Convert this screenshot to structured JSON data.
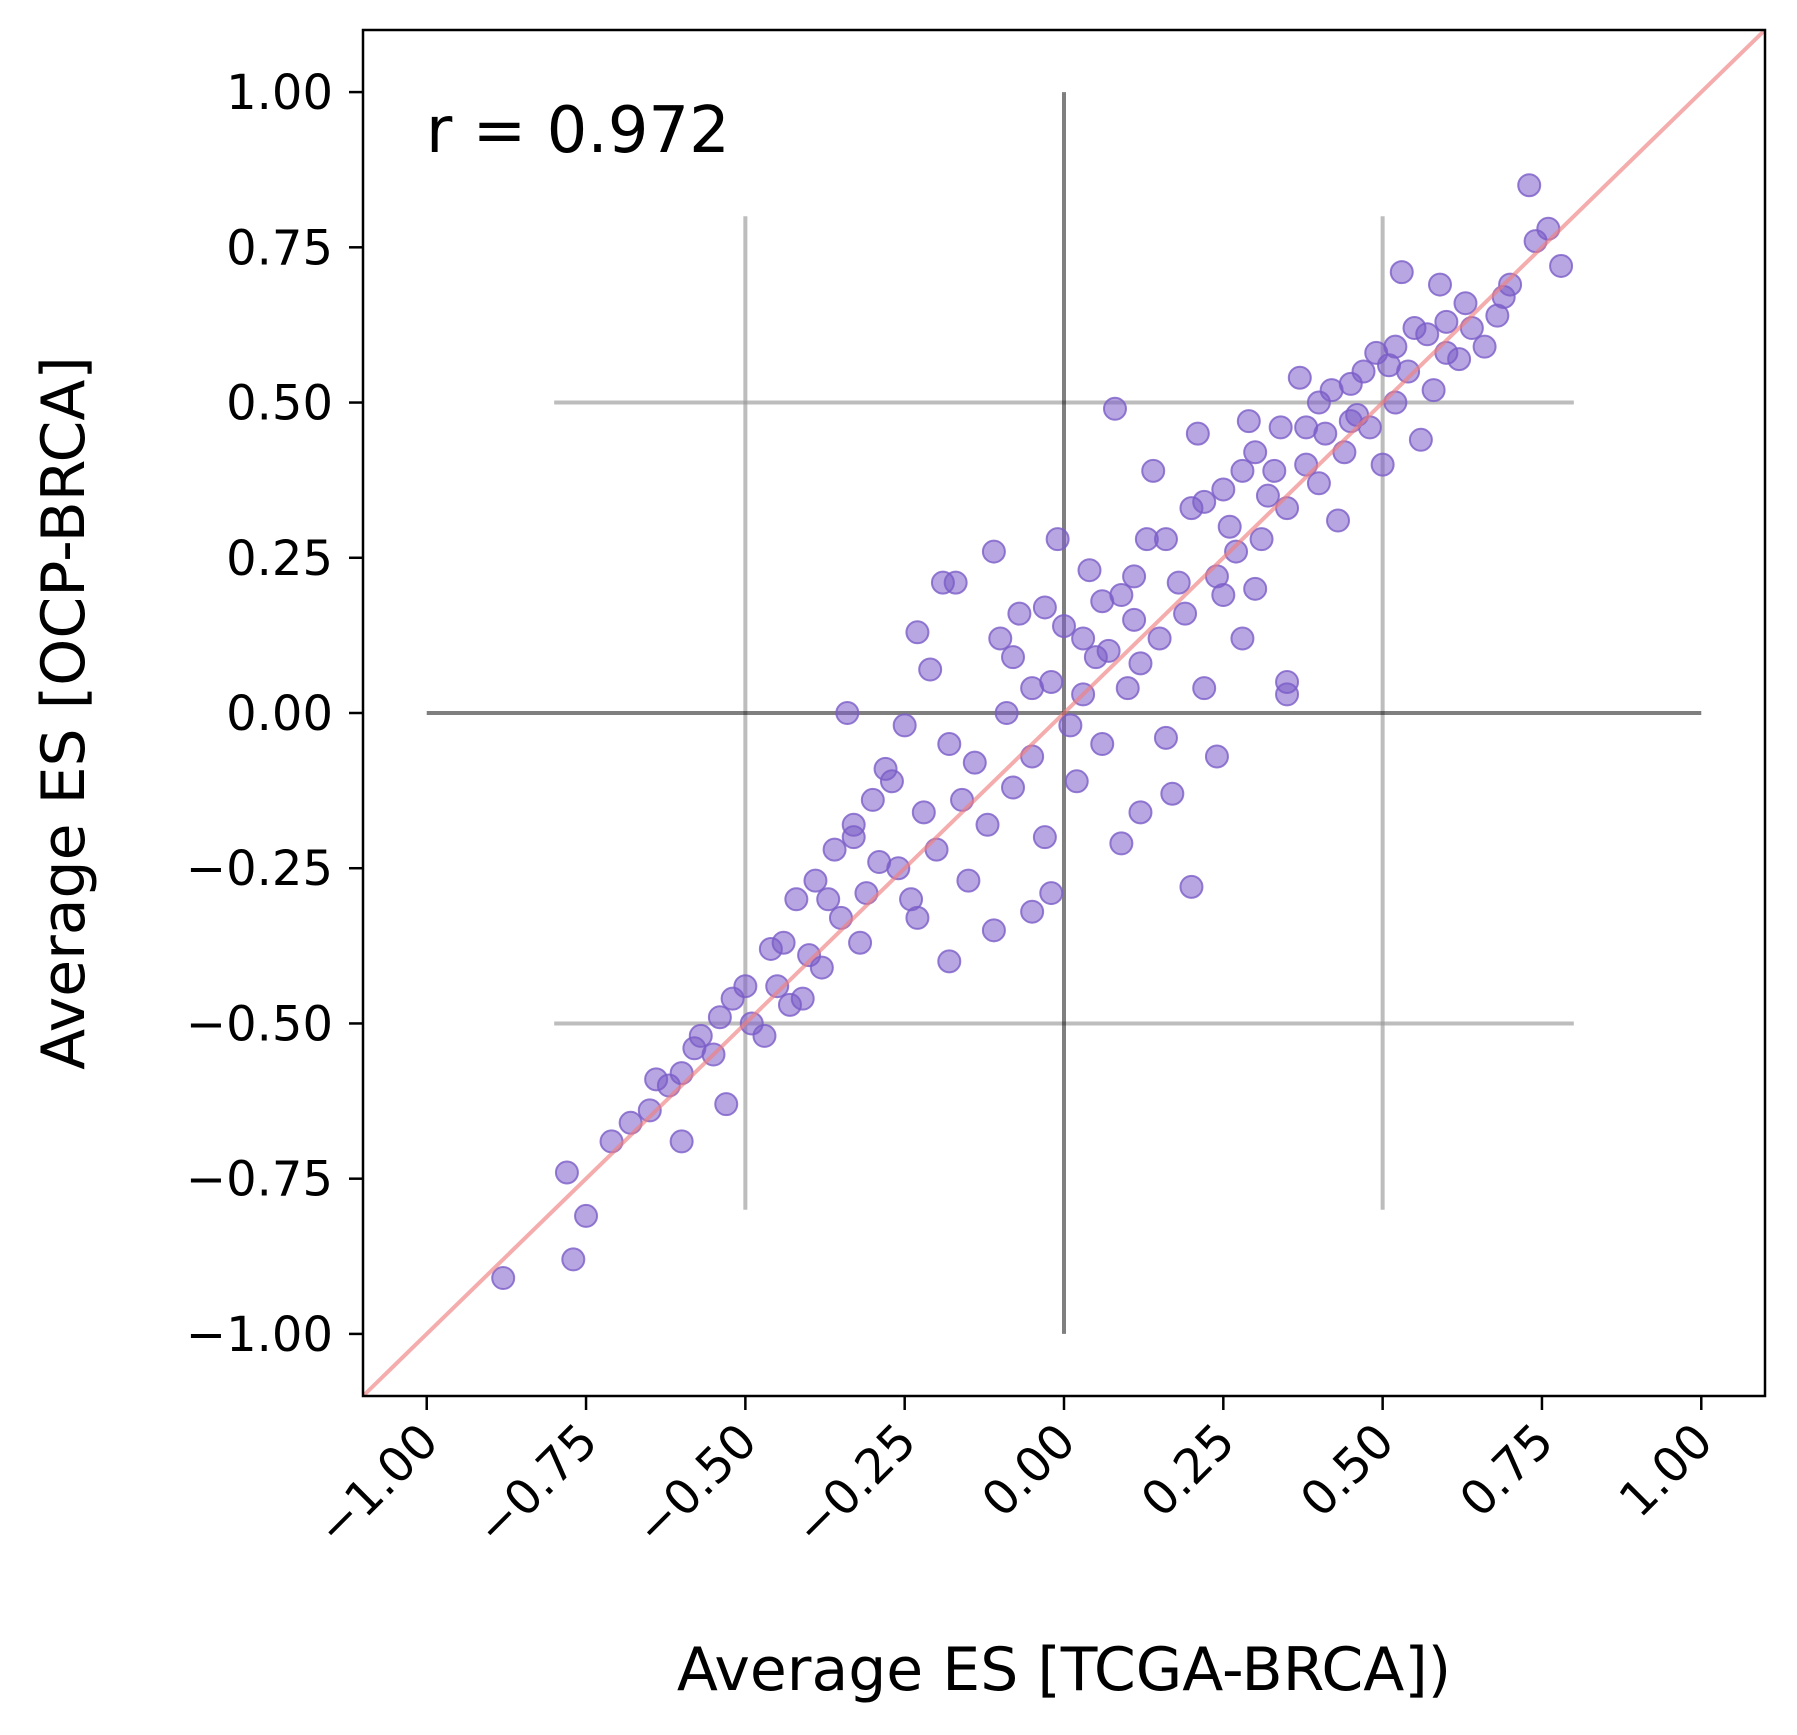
{
  "chart_data": {
    "type": "scatter",
    "xlabel": "Average ES [TCGA-BRCA])",
    "ylabel": "Average ES [OCP-BRCA]",
    "annotation": "r = 0.972",
    "xlim": [
      -1.1,
      1.1
    ],
    "ylim": [
      -1.1,
      1.1
    ],
    "xticks": [
      -1.0,
      -0.75,
      -0.5,
      -0.25,
      0.0,
      0.25,
      0.5,
      0.75,
      1.0
    ],
    "yticks": [
      -1.0,
      -0.75,
      -0.5,
      -0.25,
      0.0,
      0.25,
      0.5,
      0.75,
      1.0
    ],
    "xtick_labels": [
      "−1.00",
      "−0.75",
      "−0.50",
      "−0.25",
      "0.00",
      "0.25",
      "0.50",
      "0.75",
      "1.00"
    ],
    "ytick_labels": [
      "−1.00",
      "−0.75",
      "−0.50",
      "−0.25",
      "0.00",
      "0.25",
      "0.50",
      "0.75",
      "1.00"
    ],
    "xtick_rotation_deg": 45,
    "grid": false,
    "colors": {
      "points": "#7b5cc8",
      "identity_line": "#f08080",
      "zero_lines": "#000000",
      "reference_lines": "#999999"
    },
    "identity_line": true,
    "zero_lines": {
      "horizontal": {
        "y": 0.0,
        "x_range": [
          -1.0,
          1.0
        ]
      },
      "vertical": {
        "x": 0.0,
        "y_range": [
          -1.0,
          1.0
        ]
      }
    },
    "reference_lines": {
      "horizontal": [
        {
          "y": 0.5,
          "x_range": [
            -0.8,
            0.8
          ]
        },
        {
          "y": -0.5,
          "x_range": [
            -0.8,
            0.8
          ]
        }
      ],
      "vertical": [
        {
          "x": -0.5,
          "y_range": [
            -0.8,
            0.8
          ]
        },
        {
          "x": 0.5,
          "y_range": [
            -0.8,
            0.8
          ]
        }
      ]
    },
    "series": [
      {
        "points": [
          [
            0.73,
            0.85
          ],
          [
            0.78,
            0.72
          ],
          [
            0.76,
            0.78
          ],
          [
            0.74,
            0.76
          ],
          [
            0.7,
            0.69
          ],
          [
            0.68,
            0.64
          ],
          [
            0.63,
            0.66
          ],
          [
            0.6,
            0.63
          ],
          [
            0.59,
            0.69
          ],
          [
            0.53,
            0.71
          ],
          [
            0.55,
            0.62
          ],
          [
            0.52,
            0.59
          ],
          [
            0.49,
            0.58
          ],
          [
            0.47,
            0.55
          ],
          [
            0.45,
            0.53
          ],
          [
            0.42,
            0.52
          ],
          [
            0.4,
            0.5
          ],
          [
            0.38,
            0.46
          ],
          [
            0.34,
            0.46
          ],
          [
            0.3,
            0.42
          ],
          [
            0.28,
            0.39
          ],
          [
            0.25,
            0.36
          ],
          [
            0.22,
            0.34
          ],
          [
            0.2,
            0.33
          ],
          [
            0.16,
            0.28
          ],
          [
            0.13,
            0.28
          ],
          [
            0.11,
            0.22
          ],
          [
            0.09,
            0.19
          ],
          [
            0.06,
            0.18
          ],
          [
            0.03,
            0.12
          ],
          [
            -0.01,
            0.28
          ],
          [
            -0.03,
            0.17
          ],
          [
            -0.05,
            0.04
          ],
          [
            -0.08,
            0.09
          ],
          [
            -0.1,
            0.12
          ],
          [
            -0.11,
            0.26
          ],
          [
            -0.17,
            0.21
          ],
          [
            -0.19,
            0.21
          ],
          [
            -0.23,
            0.13
          ],
          [
            -0.21,
            0.07
          ],
          [
            -0.25,
            -0.02
          ],
          [
            -0.28,
            -0.09
          ],
          [
            -0.3,
            -0.14
          ],
          [
            -0.33,
            -0.18
          ],
          [
            -0.36,
            -0.22
          ],
          [
            -0.39,
            -0.27
          ],
          [
            -0.42,
            -0.3
          ],
          [
            -0.46,
            -0.38
          ],
          [
            -0.5,
            -0.44
          ],
          [
            -0.54,
            -0.49
          ],
          [
            -0.57,
            -0.52
          ],
          [
            -0.6,
            -0.58
          ],
          [
            -0.64,
            -0.59
          ],
          [
            -0.68,
            -0.66
          ],
          [
            -0.71,
            -0.69
          ],
          [
            -0.78,
            -0.74
          ],
          [
            -0.75,
            -0.81
          ],
          [
            -0.77,
            -0.88
          ],
          [
            -0.88,
            -0.91
          ],
          [
            -0.34,
            0.0
          ],
          [
            0.2,
            -0.28
          ],
          [
            0.35,
            0.03
          ],
          [
            0.35,
            0.05
          ],
          [
            0.08,
            0.49
          ],
          [
            0.28,
            0.12
          ],
          [
            0.17,
            -0.13
          ],
          [
            0.12,
            -0.16
          ],
          [
            0.09,
            -0.21
          ],
          [
            -0.02,
            -0.29
          ],
          [
            -0.05,
            -0.32
          ],
          [
            -0.11,
            -0.35
          ],
          [
            -0.18,
            -0.4
          ],
          [
            -0.23,
            -0.33
          ],
          [
            0.24,
            -0.07
          ],
          [
            0.25,
            0.19
          ],
          [
            0.43,
            0.31
          ],
          [
            0.5,
            0.4
          ],
          [
            0.56,
            0.44
          ],
          [
            0.62,
            0.57
          ],
          [
            -0.6,
            -0.69
          ],
          [
            -0.65,
            -0.64
          ],
          [
            -0.53,
            -0.63
          ],
          [
            -0.43,
            -0.47
          ],
          [
            -0.38,
            -0.41
          ],
          [
            0.14,
            0.39
          ],
          [
            0.21,
            0.45
          ],
          [
            0.29,
            0.47
          ],
          [
            0.37,
            0.54
          ],
          [
            0.45,
            0.47
          ],
          [
            0.58,
            0.52
          ],
          [
            0.66,
            0.59
          ],
          [
            -0.14,
            -0.08
          ],
          [
            -0.08,
            -0.12
          ],
          [
            0.03,
            0.03
          ],
          [
            0.06,
            -0.05
          ],
          [
            -0.02,
            0.05
          ],
          [
            0.01,
            -0.02
          ],
          [
            0.1,
            0.04
          ],
          [
            0.15,
            0.12
          ],
          [
            0.19,
            0.16
          ],
          [
            0.24,
            0.22
          ],
          [
            0.31,
            0.28
          ],
          [
            0.35,
            0.33
          ],
          [
            0.4,
            0.37
          ],
          [
            0.44,
            0.42
          ],
          [
            0.48,
            0.46
          ],
          [
            0.52,
            0.5
          ],
          [
            -0.12,
            -0.18
          ],
          [
            -0.16,
            -0.14
          ],
          [
            -0.2,
            -0.22
          ],
          [
            -0.26,
            -0.25
          ],
          [
            -0.31,
            -0.29
          ],
          [
            -0.35,
            -0.33
          ],
          [
            -0.4,
            -0.39
          ],
          [
            -0.45,
            -0.44
          ],
          [
            -0.49,
            -0.5
          ],
          [
            -0.55,
            -0.55
          ],
          [
            -0.05,
            -0.07
          ],
          [
            -0.09,
            0.0
          ],
          [
            0.05,
            0.09
          ],
          [
            0.12,
            0.08
          ],
          [
            0.18,
            0.21
          ],
          [
            0.27,
            0.26
          ],
          [
            0.32,
            0.35
          ],
          [
            0.38,
            0.4
          ],
          [
            0.46,
            0.48
          ],
          [
            0.54,
            0.55
          ],
          [
            0.6,
            0.58
          ],
          [
            0.64,
            0.62
          ],
          [
            0.69,
            0.67
          ],
          [
            -0.22,
            -0.16
          ],
          [
            -0.29,
            -0.24
          ],
          [
            -0.37,
            -0.3
          ],
          [
            -0.44,
            -0.37
          ],
          [
            -0.52,
            -0.46
          ],
          [
            -0.58,
            -0.54
          ],
          [
            -0.62,
            -0.6
          ],
          [
            0.0,
            0.14
          ],
          [
            0.04,
            0.23
          ],
          [
            -0.07,
            0.16
          ],
          [
            0.26,
            0.3
          ],
          [
            0.33,
            0.39
          ],
          [
            0.41,
            0.45
          ],
          [
            0.51,
            0.56
          ],
          [
            0.57,
            0.61
          ],
          [
            0.16,
            -0.04
          ],
          [
            0.22,
            0.04
          ],
          [
            0.3,
            0.2
          ],
          [
            -0.15,
            -0.27
          ],
          [
            -0.24,
            -0.3
          ],
          [
            -0.32,
            -0.37
          ],
          [
            -0.41,
            -0.46
          ],
          [
            -0.47,
            -0.52
          ],
          [
            0.02,
            -0.11
          ],
          [
            -0.03,
            -0.2
          ],
          [
            0.07,
            0.1
          ],
          [
            0.11,
            0.15
          ],
          [
            -0.18,
            -0.05
          ],
          [
            -0.27,
            -0.11
          ],
          [
            -0.33,
            -0.2
          ]
        ]
      }
    ]
  }
}
